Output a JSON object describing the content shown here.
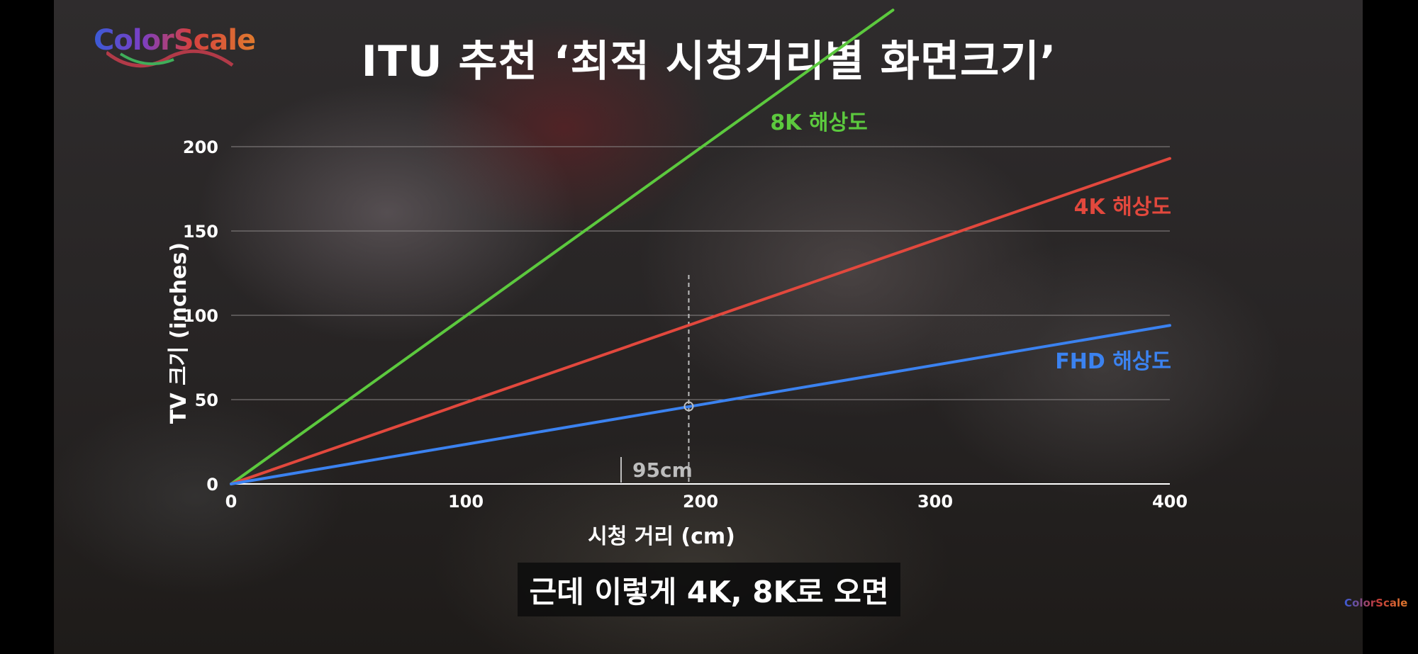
{
  "brand": {
    "logo_text": "ColorScale",
    "corner_logo_text": "ColorScale"
  },
  "video": {
    "title": "ITU 추천 ‘최적 시청거리별 화면크기’",
    "caption": "근데 이렇게 4K, 8K로 오면"
  },
  "chart_data": {
    "type": "line",
    "title": "ITU 추천 ‘최적 시청거리별 화면크기’",
    "xlabel": "시청 거리 (cm)",
    "ylabel": "TV 크기 (inches)",
    "xlim": [
      0,
      400
    ],
    "ylim": [
      0,
      200
    ],
    "x_ticks": [
      0,
      100,
      200,
      300,
      400
    ],
    "y_ticks": [
      0,
      50,
      100,
      150,
      200
    ],
    "grid": true,
    "series": [
      {
        "name": "8K 해상도",
        "color": "#5cc93e",
        "x": [
          0,
          282
        ],
        "y": [
          0,
          281
        ]
      },
      {
        "name": "4K 해상도",
        "color": "#e2483d",
        "x": [
          0,
          400
        ],
        "y": [
          0,
          193
        ]
      },
      {
        "name": "FHD 해상도",
        "color": "#3b82f0",
        "x": [
          0,
          400
        ],
        "y": [
          0,
          94
        ]
      }
    ],
    "annotation": {
      "label": "95cm",
      "x": 195,
      "marker_y": 46
    }
  },
  "colors": {
    "grid": "#8a8686",
    "axis": "#ffffff",
    "annotation": "#bdbdbd"
  }
}
